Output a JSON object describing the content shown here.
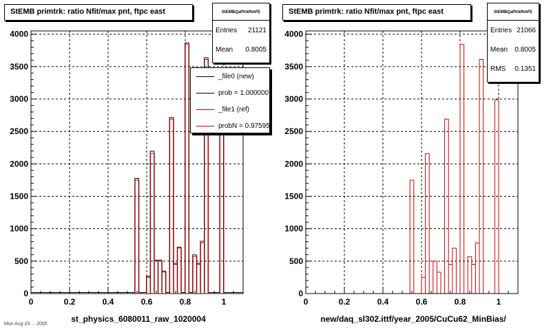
{
  "chart_data": [
    {
      "type": "histogram",
      "title": "StEMB primtrk: ratio Nfit/max pnt, ftpc east",
      "xlabel": "st_physics_6080011_raw_1020004",
      "xlim": [
        0,
        1.1
      ],
      "ylim": [
        0,
        4050
      ],
      "x_ticks": [
        "0",
        "0.2",
        "0.4",
        "0.6",
        "0.8",
        "1"
      ],
      "y_ticks": [
        "0",
        "500",
        "1000",
        "1500",
        "2000",
        "2500",
        "3000",
        "3500",
        "4000"
      ],
      "grid": true,
      "bin_width": 0.02,
      "x": [
        0.55,
        0.57,
        0.61,
        0.63,
        0.65,
        0.67,
        0.69,
        0.73,
        0.75,
        0.77,
        0.81,
        0.83,
        0.85,
        0.87,
        0.89,
        0.91,
        0.93,
        0.99
      ],
      "series": [
        {
          "name": "_file0 (new)",
          "color": "#000000",
          "values": [
            1760,
            0,
            250,
            2180,
            500,
            500,
            330,
            2700,
            450,
            700,
            3850,
            0,
            580,
            450,
            790,
            3620,
            0,
            3000
          ]
        },
        {
          "name": "_file1 (ref)",
          "color": "#cc0000",
          "values": [
            1750,
            0,
            250,
            2160,
            500,
            500,
            330,
            2690,
            450,
            700,
            3840,
            0,
            570,
            450,
            780,
            3610,
            0,
            2990
          ]
        }
      ],
      "stats": {
        "header": "StEMBQaPtrkRmFE",
        "entries_label": "Entries",
        "entries": "21121",
        "mean_label": "Mean",
        "mean": "0.8005"
      },
      "legend": {
        "placement": "top-right",
        "items": [
          "_file0 (new)",
          "prob = 1.000000",
          "_file1 (ref)",
          "probN = 0.97595"
        ]
      }
    },
    {
      "type": "histogram",
      "title": "StEMB primtrk: ratio Nfit/max pnt, ftpc east",
      "xlabel": "new/daq_sl302.ittf/year_2005/CuCu62_MinBias/",
      "xlim": [
        0,
        1.1
      ],
      "ylim": [
        0,
        4050
      ],
      "x_ticks": [
        "0",
        "0.2",
        "0.4",
        "0.6",
        "0.8",
        "1"
      ],
      "y_ticks": [
        "0",
        "500",
        "1000",
        "1500",
        "2000",
        "2500",
        "3000",
        "3500",
        "4000"
      ],
      "grid": true,
      "bin_width": 0.02,
      "x": [
        0.55,
        0.57,
        0.61,
        0.63,
        0.65,
        0.67,
        0.69,
        0.73,
        0.75,
        0.77,
        0.81,
        0.83,
        0.85,
        0.87,
        0.89,
        0.91,
        0.93,
        0.99
      ],
      "series": [
        {
          "name": "",
          "color": "#cc0000",
          "values": [
            1750,
            0,
            250,
            2160,
            500,
            500,
            330,
            2690,
            450,
            700,
            3840,
            0,
            570,
            450,
            780,
            3610,
            0,
            2990
          ]
        }
      ],
      "stats": {
        "header": "StEMBQaPtrkRmFE",
        "entries_label": "Entries",
        "entries": "21066",
        "mean_label": "Mean",
        "mean": "0.8005",
        "rms_label": "RMS",
        "rms": "0.1351"
      }
    }
  ],
  "footer": "Mon Aug 23 ... 2005"
}
